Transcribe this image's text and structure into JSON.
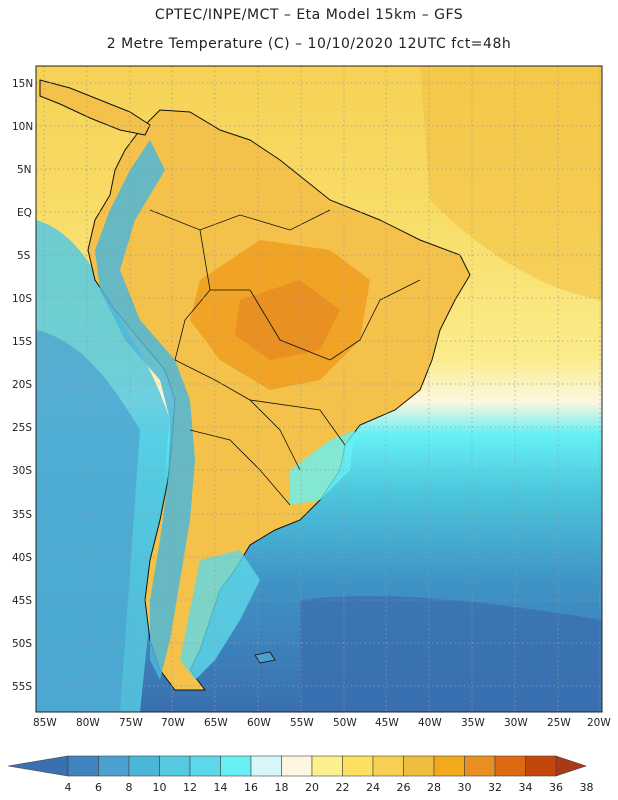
{
  "header": {
    "title_line1": "CPTEC/INPE/MCT – Eta Model 15km – GFS",
    "title_line2": "2 Metre Temperature (C) – 10/10/2020 12UTC fct=48h"
  },
  "map": {
    "lat_ticks": [
      "15N",
      "10N",
      "5N",
      "EQ",
      "5S",
      "10S",
      "15S",
      "20S",
      "25S",
      "30S",
      "35S",
      "40S",
      "45S",
      "50S",
      "55S"
    ],
    "lon_ticks": [
      "85W",
      "80W",
      "75W",
      "70W",
      "65W",
      "60W",
      "55W",
      "50W",
      "45W",
      "40W",
      "35W",
      "30W",
      "25W",
      "20W"
    ]
  },
  "colorbar": {
    "labels": [
      "4",
      "6",
      "8",
      "10",
      "12",
      "14",
      "16",
      "18",
      "20",
      "22",
      "24",
      "26",
      "28",
      "30",
      "32",
      "34",
      "36",
      "38"
    ],
    "colors": [
      "#3a6fb0",
      "#3f83c0",
      "#4aa0cf",
      "#4cb6d8",
      "#55c9e0",
      "#5ed8e8",
      "#66f0f4",
      "#d7f6fa",
      "#fdf6e0",
      "#fcf08c",
      "#fbe062",
      "#f6d055",
      "#efbe3e",
      "#f2aa1c",
      "#e98e20",
      "#dd6a12",
      "#c34708",
      "#a83a18"
    ]
  }
}
